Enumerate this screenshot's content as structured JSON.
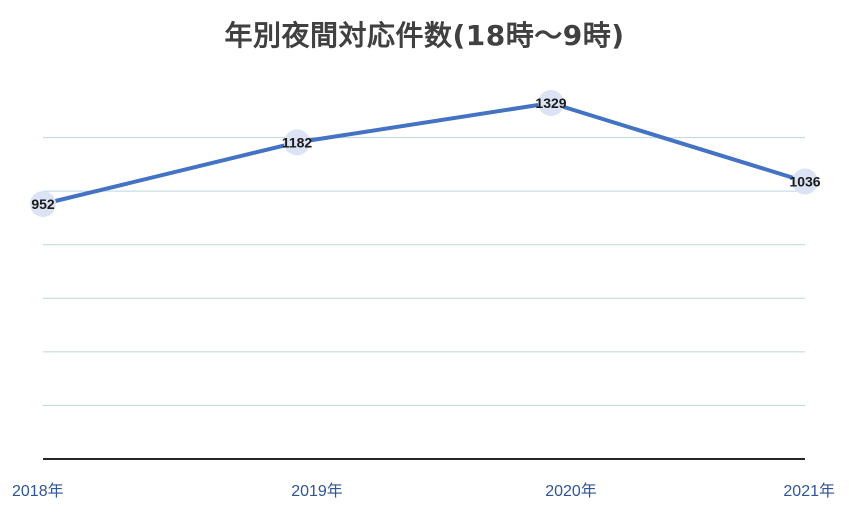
{
  "chart_data": {
    "type": "line",
    "title": "年別夜間対応件数(18時～9時)",
    "categories": [
      "2018年",
      "2019年",
      "2020年",
      "2021年"
    ],
    "series": [
      {
        "values": [
          952,
          1182,
          1329,
          1036
        ]
      }
    ],
    "data_labels": [
      "952",
      "1182",
      "1329",
      "1036"
    ],
    "ylim": [
      0,
      1400
    ],
    "grid": true,
    "colors": {
      "line": "#4472c4",
      "marker": "#dbe3f4",
      "grid": "#bcd5e0",
      "tick_label": "#2f5597"
    }
  }
}
